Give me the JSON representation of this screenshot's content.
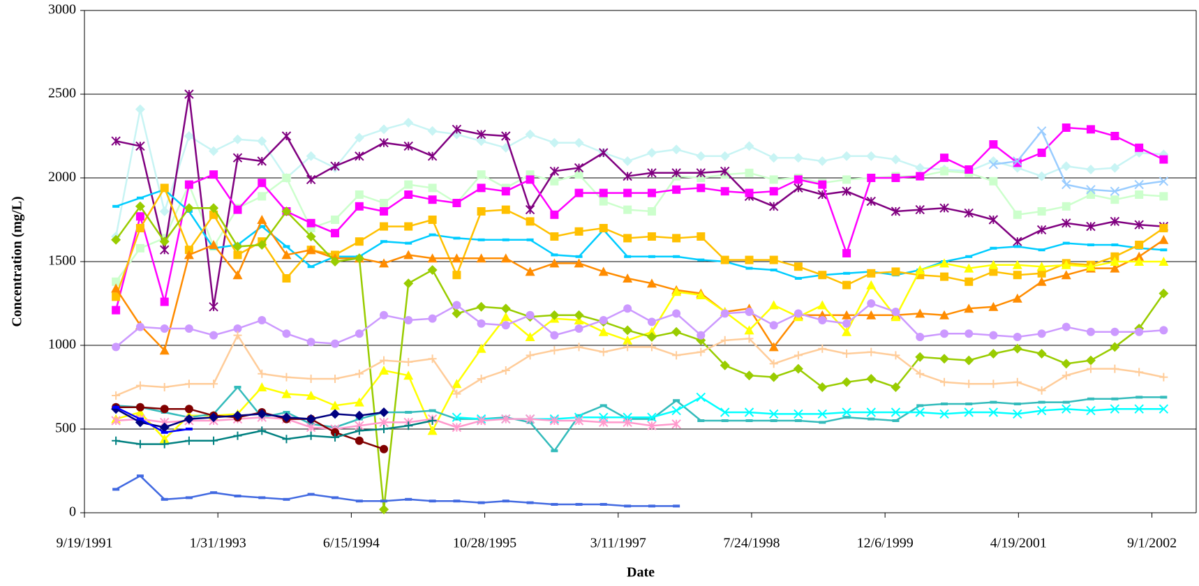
{
  "chart_data": {
    "type": "line",
    "x_label": "Date",
    "y_label": "Concentration (mg/L)",
    "xlim": [
      "9/19/1991",
      "2/14/2003"
    ],
    "xticks": [
      "9/19/1991",
      "1/31/1993",
      "6/15/1994",
      "10/28/1995",
      "3/11/1997",
      "7/24/1998",
      "12/6/1999",
      "4/19/2001",
      "9/1/2002"
    ],
    "ylim": [
      0,
      3000
    ],
    "yticks": [
      0,
      500,
      1000,
      1500,
      2000,
      2500,
      3000
    ],
    "grid": true,
    "x": [
      "1/15/1992",
      "4/15/1992",
      "7/15/1992",
      "10/15/1992",
      "1/15/1993",
      "4/15/1993",
      "7/15/1993",
      "10/15/1993",
      "1/15/1994",
      "4/15/1994",
      "7/15/1994",
      "10/15/1994",
      "1/15/1995",
      "4/15/1995",
      "7/15/1995",
      "10/15/1995",
      "1/15/1996",
      "4/15/1996",
      "7/15/1996",
      "10/15/1996",
      "1/15/1997",
      "4/15/1997",
      "7/15/1997",
      "10/15/1997",
      "1/15/1998",
      "4/15/1998",
      "7/15/1998",
      "10/15/1998",
      "1/15/1999",
      "4/15/1999",
      "7/15/1999",
      "10/15/1999",
      "1/15/2000",
      "4/15/2000",
      "7/15/2000",
      "10/15/2000",
      "1/15/2001",
      "4/15/2001",
      "7/15/2001",
      "10/15/2001",
      "1/15/2002",
      "4/15/2002",
      "7/15/2002",
      "10/15/2002"
    ],
    "series": [
      {
        "color": "#c8f4f4",
        "marker": "diamond",
        "values": [
          1650,
          2410,
          1800,
          2250,
          2160,
          2230,
          2220,
          2000,
          2130,
          2060,
          2240,
          2290,
          2330,
          2280,
          2260,
          2220,
          2180,
          2260,
          2210,
          2210,
          2150,
          2100,
          2150,
          2170,
          2130,
          2130,
          2190,
          2120,
          2120,
          2100,
          2130,
          2130,
          2110,
          2060,
          2050,
          2040,
          2100,
          2060,
          2010,
          2070,
          2050,
          2060,
          2150,
          2140
        ]
      },
      {
        "color": "#ccffcc",
        "marker": "square",
        "values": [
          1380,
          1580,
          1640,
          1960,
          1590,
          1820,
          1890,
          2000,
          1700,
          1750,
          1900,
          1850,
          1960,
          1940,
          1850,
          2020,
          1940,
          2020,
          1980,
          2020,
          1860,
          1810,
          1800,
          2010,
          2000,
          2020,
          2030,
          1990,
          2000,
          1970,
          1990,
          2000,
          2010,
          2010,
          2040,
          2030,
          1980,
          1780,
          1800,
          1830,
          1900,
          1870,
          1900,
          1890
        ]
      },
      {
        "color": "#800080",
        "marker": "asterisk",
        "values": [
          2220,
          2190,
          1570,
          2500,
          1230,
          2120,
          2100,
          2250,
          1990,
          2070,
          2130,
          2210,
          2190,
          2130,
          2290,
          2260,
          2250,
          1810,
          2040,
          2060,
          2150,
          2010,
          2030,
          2030,
          2030,
          2040,
          1890,
          1830,
          1940,
          1900,
          1920,
          1860,
          1800,
          1810,
          1820,
          1790,
          1750,
          1620,
          1690,
          1730,
          1710,
          1740,
          1720,
          1710
        ]
      },
      {
        "color": "#ff00ff",
        "marker": "square",
        "values": [
          1210,
          1770,
          1260,
          1960,
          2020,
          1810,
          1970,
          1800,
          1730,
          1670,
          1830,
          1800,
          1900,
          1870,
          1850,
          1940,
          1920,
          1990,
          1780,
          1910,
          1910,
          1910,
          1910,
          1930,
          1940,
          1920,
          1910,
          1920,
          1990,
          1960,
          1550,
          2000,
          2000,
          2010,
          2120,
          2050,
          2200,
          2090,
          2150,
          2300,
          2290,
          2250,
          2180,
          2110
        ]
      },
      {
        "color": "#99ccff",
        "marker": "x",
        "values": [
          null,
          null,
          null,
          null,
          null,
          null,
          null,
          null,
          null,
          null,
          null,
          null,
          null,
          null,
          null,
          null,
          null,
          null,
          null,
          null,
          null,
          null,
          null,
          null,
          null,
          null,
          null,
          null,
          null,
          null,
          null,
          null,
          null,
          null,
          null,
          null,
          2080,
          2100,
          2280,
          1960,
          1930,
          1920,
          1960,
          1980
        ]
      },
      {
        "color": "#00ccff",
        "marker": "dash",
        "values": [
          1830,
          1880,
          1930,
          1800,
          1580,
          1600,
          1710,
          1590,
          1470,
          1530,
          1530,
          1620,
          1610,
          1660,
          1640,
          1630,
          1630,
          1630,
          1540,
          1530,
          1690,
          1530,
          1530,
          1530,
          1510,
          1500,
          1460,
          1450,
          1400,
          1420,
          1430,
          1440,
          1420,
          1450,
          1500,
          1530,
          1580,
          1590,
          1570,
          1610,
          1600,
          1600,
          1580,
          1570
        ]
      },
      {
        "color": "#ffc000",
        "marker": "square",
        "values": [
          1290,
          1700,
          1940,
          1570,
          1780,
          1540,
          1620,
          1400,
          1570,
          1540,
          1620,
          1710,
          1710,
          1750,
          1420,
          1800,
          1810,
          1740,
          1650,
          1680,
          1700,
          1640,
          1650,
          1640,
          1650,
          1510,
          1510,
          1510,
          1470,
          1420,
          1360,
          1430,
          1440,
          1420,
          1410,
          1380,
          1440,
          1420,
          1430,
          1490,
          1480,
          1530,
          1600,
          1700
        ]
      },
      {
        "color": "#ff8c00",
        "marker": "triangle",
        "values": [
          1340,
          1120,
          970,
          1540,
          1600,
          1420,
          1750,
          1540,
          1570,
          1520,
          1520,
          1490,
          1540,
          1520,
          1520,
          1520,
          1520,
          1440,
          1490,
          1490,
          1440,
          1400,
          1370,
          1330,
          1310,
          1200,
          1220,
          990,
          1180,
          1180,
          1180,
          1180,
          1180,
          1190,
          1180,
          1220,
          1230,
          1280,
          1380,
          1420,
          1460,
          1460,
          1530,
          1630
        ]
      },
      {
        "color": "#ffff00",
        "marker": "triangle",
        "values": [
          560,
          600,
          440,
          580,
          580,
          590,
          750,
          710,
          700,
          640,
          660,
          850,
          820,
          490,
          770,
          980,
          1170,
          1050,
          1160,
          1150,
          1080,
          1030,
          1080,
          1320,
          1300,
          1200,
          1090,
          1240,
          1170,
          1240,
          1080,
          1360,
          1170,
          1450,
          1490,
          1460,
          1480,
          1480,
          1470,
          1480,
          1470,
          1500,
          1500,
          1500
        ]
      },
      {
        "color": "#99cc00",
        "marker": "diamond",
        "values": [
          1630,
          1830,
          1620,
          1820,
          1820,
          1590,
          1600,
          1800,
          1650,
          1500,
          1520,
          20,
          1370,
          1450,
          1190,
          1230,
          1220,
          1170,
          1180,
          1180,
          1140,
          1090,
          1050,
          1080,
          1030,
          880,
          820,
          810,
          860,
          750,
          780,
          800,
          750,
          930,
          920,
          910,
          950,
          980,
          950,
          890,
          910,
          990,
          1100,
          1310
        ]
      },
      {
        "color": "#cc99ff",
        "marker": "circle",
        "values": [
          990,
          1110,
          1100,
          1100,
          1060,
          1100,
          1150,
          1070,
          1020,
          1010,
          1070,
          1180,
          1150,
          1160,
          1240,
          1130,
          1120,
          1180,
          1060,
          1100,
          1150,
          1220,
          1140,
          1190,
          1060,
          1190,
          1200,
          1120,
          1190,
          1150,
          1130,
          1250,
          1200,
          1050,
          1070,
          1070,
          1060,
          1050,
          1070,
          1110,
          1080,
          1080,
          1080,
          1090
        ]
      },
      {
        "color": "#ffcc99",
        "marker": "plus",
        "values": [
          700,
          760,
          750,
          770,
          770,
          1060,
          830,
          810,
          800,
          800,
          830,
          910,
          900,
          920,
          710,
          800,
          850,
          940,
          970,
          990,
          960,
          990,
          990,
          940,
          960,
          1030,
          1040,
          890,
          940,
          980,
          950,
          960,
          940,
          830,
          780,
          770,
          770,
          780,
          730,
          820,
          860,
          860,
          840,
          810
        ]
      },
      {
        "color": "#33bbbb",
        "marker": "dash",
        "values": [
          640,
          630,
          600,
          570,
          590,
          750,
          570,
          600,
          530,
          510,
          560,
          600,
          600,
          610,
          560,
          560,
          570,
          540,
          370,
          580,
          640,
          560,
          560,
          670,
          550,
          550,
          550,
          550,
          550,
          540,
          570,
          560,
          550,
          640,
          650,
          650,
          660,
          650,
          660,
          660,
          680,
          680,
          690,
          690
        ]
      },
      {
        "color": "#00ffff",
        "marker": "x",
        "values": [
          null,
          null,
          null,
          null,
          null,
          null,
          null,
          null,
          null,
          null,
          null,
          null,
          null,
          null,
          570,
          560,
          560,
          560,
          560,
          570,
          570,
          570,
          570,
          610,
          690,
          600,
          600,
          590,
          590,
          590,
          600,
          600,
          600,
          600,
          590,
          600,
          600,
          590,
          610,
          620,
          610,
          620,
          620,
          620
        ]
      },
      {
        "color": "#ff99cc",
        "marker": "asterisk",
        "values": [
          550,
          560,
          540,
          550,
          550,
          560,
          570,
          560,
          510,
          500,
          520,
          540,
          540,
          560,
          510,
          550,
          560,
          560,
          550,
          550,
          540,
          540,
          520,
          530,
          null,
          null,
          null,
          null,
          null,
          null,
          null,
          null,
          null,
          null,
          null,
          null,
          null,
          null,
          null,
          null,
          null,
          null,
          null,
          null
        ]
      },
      {
        "color": "#800000",
        "marker": "circle",
        "values": [
          630,
          630,
          620,
          620,
          580,
          570,
          600,
          560,
          560,
          480,
          430,
          380,
          null,
          null,
          null,
          null,
          null,
          null,
          null,
          null,
          null,
          null,
          null,
          null,
          null,
          null,
          null,
          null,
          null,
          null,
          null,
          null,
          null,
          null,
          null,
          null,
          null,
          null,
          null,
          null,
          null,
          null,
          null,
          null
        ]
      },
      {
        "color": "#000080",
        "marker": "diamond",
        "values": [
          620,
          540,
          510,
          560,
          570,
          580,
          590,
          570,
          560,
          590,
          580,
          600,
          null,
          null,
          null,
          null,
          null,
          null,
          null,
          null,
          null,
          null,
          null,
          null,
          null,
          null,
          null,
          null,
          null,
          null,
          null,
          null,
          null,
          null,
          null,
          null,
          null,
          null,
          null,
          null,
          null,
          null,
          null,
          null
        ]
      },
      {
        "color": "#008080",
        "marker": "plus",
        "values": [
          430,
          410,
          410,
          430,
          430,
          460,
          490,
          440,
          460,
          450,
          490,
          500,
          520,
          550,
          null,
          null,
          null,
          null,
          null,
          null,
          null,
          null,
          null,
          null,
          null,
          null,
          null,
          null,
          null,
          null,
          null,
          null,
          null,
          null,
          null,
          null,
          null,
          null,
          null,
          null,
          null,
          null,
          null,
          null
        ]
      },
      {
        "color": "#4169e1",
        "marker": "dash",
        "values": [
          140,
          220,
          80,
          90,
          120,
          100,
          90,
          80,
          110,
          90,
          70,
          70,
          80,
          70,
          70,
          60,
          70,
          60,
          50,
          50,
          50,
          40,
          40,
          40,
          null,
          null,
          null,
          null,
          null,
          null,
          null,
          null,
          null,
          null,
          null,
          null,
          null,
          null,
          null,
          null,
          null,
          null,
          null,
          null
        ]
      },
      {
        "color": "#0000ff",
        "marker": "dash",
        "values": [
          630,
          560,
          480,
          500,
          null,
          null,
          null,
          null,
          null,
          null,
          null,
          null,
          null,
          null,
          null,
          null,
          null,
          null,
          null,
          null,
          null,
          null,
          null,
          null,
          null,
          null,
          null,
          null,
          null,
          null,
          null,
          null,
          null,
          null,
          null,
          null,
          null,
          null,
          null,
          null,
          null,
          null,
          null,
          null
        ]
      }
    ]
  }
}
